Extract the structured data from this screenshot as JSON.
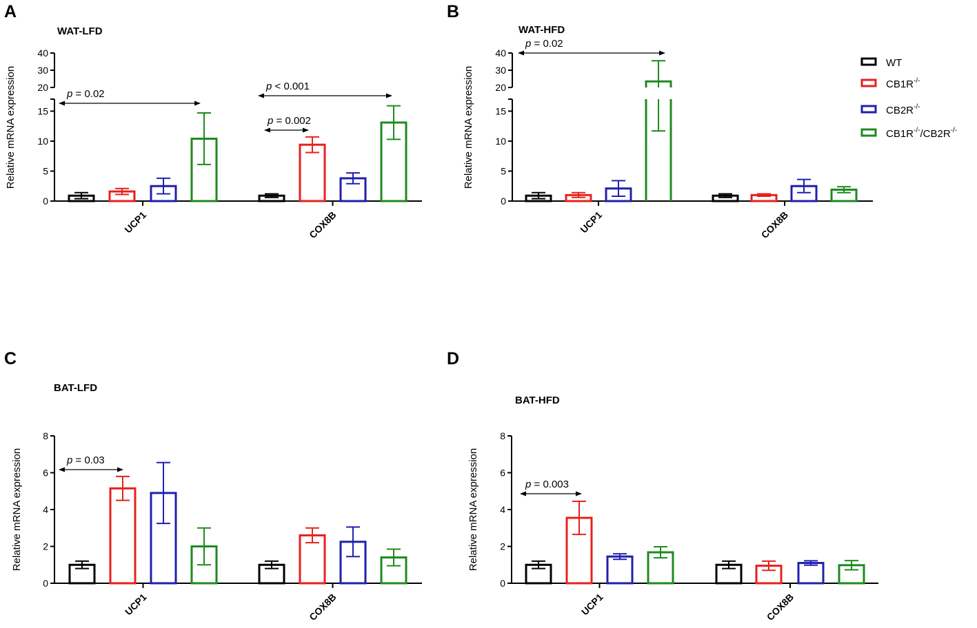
{
  "legend": [
    {
      "name": "WT",
      "color": "#000000"
    },
    {
      "name": "CB1R",
      "sup": "-/-",
      "color": "#e8201c"
    },
    {
      "name": "CB2R",
      "sup": "-/-",
      "color": "#1f1fb0"
    },
    {
      "name": "CB1R",
      "sup": "-/-",
      "name2": "/CB2R",
      "sup2": "-/-",
      "color": "#1e8a1e"
    }
  ],
  "chart_data": [
    {
      "panel": "A",
      "type": "bar",
      "title": "WAT-LFD",
      "ylabel": "Relative mRNA expression",
      "categories": [
        "UCP1",
        "COX8B"
      ],
      "broken_axis": true,
      "lower_ylim": [
        0,
        17
      ],
      "lower_yticks": [
        "0",
        "5",
        "10",
        "15"
      ],
      "upper_ylim": [
        20,
        40
      ],
      "upper_yticks": [
        "20",
        "30",
        "40"
      ],
      "series": [
        {
          "name": "WT",
          "values": [
            0.9,
            0.9
          ],
          "err": [
            0.5,
            0.3
          ]
        },
        {
          "name": "CB1R-/-",
          "values": [
            1.6,
            9.4
          ],
          "err": [
            0.5,
            1.3
          ]
        },
        {
          "name": "CB2R-/-",
          "values": [
            2.5,
            3.8
          ],
          "err": [
            1.3,
            0.9
          ]
        },
        {
          "name": "CB1R-/-/CB2R-/-",
          "values": [
            10.4,
            13.1
          ],
          "err": [
            4.3,
            2.8
          ]
        }
      ],
      "annotations": [
        {
          "label": "= 0.02",
          "from": [
            "UCP1",
            "WT"
          ],
          "to": [
            "UCP1",
            "CB1R-/-/CB2R-/-"
          ],
          "level": 16.2
        },
        {
          "label": "< 0.001",
          "from": [
            "COX8B",
            "WT"
          ],
          "to": [
            "COX8B",
            "CB1R-/-/CB2R-/-"
          ],
          "level": 17.4
        },
        {
          "label": "= 0.002",
          "from": [
            "COX8B",
            "WT"
          ],
          "to": [
            "COX8B",
            "CB1R-/-"
          ],
          "level": 11.5
        }
      ]
    },
    {
      "panel": "B",
      "type": "bar",
      "title": "WAT-HFD",
      "ylabel": "Relative mRNA expression",
      "categories": [
        "UCP1",
        "COX8B"
      ],
      "broken_axis": true,
      "lower_ylim": [
        0,
        17
      ],
      "lower_yticks": [
        "0",
        "5",
        "10",
        "15"
      ],
      "upper_ylim": [
        20,
        40
      ],
      "upper_yticks": [
        "20",
        "30",
        "40"
      ],
      "series": [
        {
          "name": "WT",
          "values": [
            0.9,
            0.9
          ],
          "err": [
            0.5,
            0.3
          ]
        },
        {
          "name": "CB1R-/-",
          "values": [
            1.0,
            1.0
          ],
          "err": [
            0.4,
            0.2
          ]
        },
        {
          "name": "CB2R-/-",
          "values": [
            2.1,
            2.5
          ],
          "err": [
            1.3,
            1.1
          ]
        },
        {
          "name": "CB1R-/-/CB2R-/-",
          "values": [
            23.5,
            1.9
          ],
          "err": [
            12.0,
            0.5
          ],
          "err_low": [
            11.8,
            0.5
          ]
        }
      ],
      "annotations": [
        {
          "label": "= 0.02",
          "from": [
            "UCP1",
            "WT"
          ],
          "to": [
            "UCP1",
            "CB1R-/-/CB2R-/-"
          ],
          "level": 40
        }
      ]
    },
    {
      "panel": "C",
      "type": "bar",
      "title": "BAT-LFD",
      "ylabel": "Relative mRNA expression",
      "categories": [
        "UCP1",
        "COX8B"
      ],
      "ylim": [
        0,
        8
      ],
      "yticks": [
        "0",
        "2",
        "4",
        "6",
        "8"
      ],
      "series": [
        {
          "name": "WT",
          "values": [
            1.0,
            1.0
          ],
          "err": [
            0.2,
            0.2
          ]
        },
        {
          "name": "CB1R-/-",
          "values": [
            5.15,
            2.6
          ],
          "err": [
            0.65,
            0.4
          ]
        },
        {
          "name": "CB2R-/-",
          "values": [
            4.9,
            2.25
          ],
          "err": [
            1.65,
            0.8
          ]
        },
        {
          "name": "CB1R-/-/CB2R-/-",
          "values": [
            2.0,
            1.4
          ],
          "err": [
            1.0,
            0.45
          ]
        }
      ],
      "annotations": [
        {
          "label": "= 0.03",
          "from": [
            "UCP1",
            "WT"
          ],
          "to": [
            "UCP1",
            "CB1R-/-"
          ],
          "level": 6.15
        }
      ]
    },
    {
      "panel": "D",
      "type": "bar",
      "title": "BAT-HFD",
      "ylabel": "Relative mRNA expression",
      "categories": [
        "UCP1",
        "COX8B"
      ],
      "ylim": [
        0,
        8
      ],
      "yticks": [
        "0",
        "2",
        "4",
        "6",
        "8"
      ],
      "series": [
        {
          "name": "WT",
          "values": [
            1.0,
            1.0
          ],
          "err": [
            0.2,
            0.2
          ]
        },
        {
          "name": "CB1R-/-",
          "values": [
            3.55,
            0.95
          ],
          "err": [
            0.9,
            0.25
          ]
        },
        {
          "name": "CB2R-/-",
          "values": [
            1.45,
            1.1
          ],
          "err": [
            0.15,
            0.12
          ]
        },
        {
          "name": "CB1R-/-/CB2R-/-",
          "values": [
            1.68,
            0.98
          ],
          "err": [
            0.3,
            0.25
          ]
        }
      ],
      "annotations": [
        {
          "label": "= 0.003",
          "from": [
            "UCP1",
            "WT"
          ],
          "to": [
            "UCP1",
            "CB1R-/-"
          ],
          "level": 5.3
        }
      ]
    }
  ]
}
